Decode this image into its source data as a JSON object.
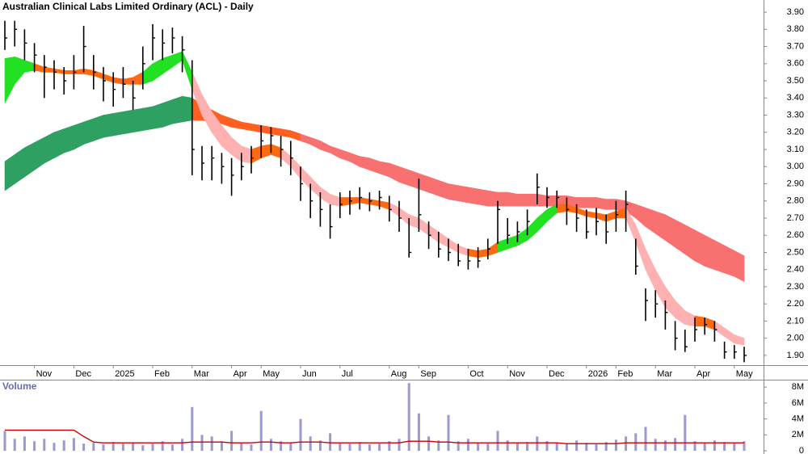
{
  "chart_data": [
    {
      "type": "ohlc",
      "title": "Australian Clinical Labs Limited Ordinary (ACL) - Daily",
      "categories": [
        null,
        null,
        null,
        "Nov",
        null,
        null,
        null,
        "Dec",
        null,
        null,
        null,
        "2025",
        null,
        null,
        null,
        "Feb",
        null,
        null,
        null,
        "Mar",
        null,
        null,
        null,
        "Apr",
        null,
        null,
        "May",
        null,
        null,
        null,
        "Jun",
        null,
        null,
        null,
        "Jul",
        null,
        null,
        null,
        null,
        "Aug",
        null,
        null,
        "Sep",
        null,
        null,
        null,
        null,
        "Oct",
        null,
        null,
        null,
        "Nov",
        null,
        null,
        null,
        "Dec",
        null,
        null,
        null,
        "2026",
        null,
        null,
        "Feb",
        null,
        null,
        null,
        "Mar",
        null,
        null,
        null,
        "Apr",
        null,
        null,
        null,
        "May",
        null
      ],
      "high": [
        3.85,
        3.85,
        3.8,
        3.72,
        3.65,
        3.62,
        3.58,
        3.65,
        3.82,
        3.65,
        3.58,
        3.55,
        3.58,
        3.5,
        3.7,
        3.83,
        3.8,
        3.81,
        3.76,
        3.62,
        3.12,
        3.12,
        3.08,
        3.05,
        3.08,
        3.12,
        3.24,
        3.23,
        3.18,
        3.15,
        3.0,
        2.9,
        2.85,
        2.78,
        2.85,
        2.86,
        2.88,
        2.85,
        2.86,
        2.83,
        2.8,
        2.7,
        2.93,
        2.68,
        2.62,
        2.58,
        2.55,
        2.52,
        2.53,
        2.58,
        2.8,
        2.7,
        2.68,
        2.75,
        2.96,
        2.88,
        2.86,
        2.82,
        2.78,
        2.75,
        2.76,
        2.72,
        2.8,
        2.86,
        2.58,
        2.29,
        2.28,
        2.22,
        2.1,
        2.05,
        2.12,
        2.12,
        2.1,
        1.98,
        1.96,
        1.95
      ],
      "low": [
        3.68,
        3.7,
        3.62,
        3.55,
        3.4,
        3.45,
        3.42,
        3.45,
        3.55,
        3.45,
        3.38,
        3.35,
        3.4,
        3.33,
        3.45,
        3.62,
        3.62,
        3.66,
        3.55,
        2.95,
        2.92,
        2.92,
        2.9,
        2.83,
        2.92,
        2.96,
        3.05,
        3.08,
        3.0,
        2.95,
        2.8,
        2.7,
        2.65,
        2.58,
        2.7,
        2.72,
        2.75,
        2.74,
        2.75,
        2.68,
        2.62,
        2.47,
        2.62,
        2.52,
        2.47,
        2.45,
        2.42,
        2.4,
        2.41,
        2.46,
        2.55,
        2.55,
        2.56,
        2.6,
        2.78,
        2.76,
        2.76,
        2.66,
        2.62,
        2.58,
        2.6,
        2.55,
        2.62,
        2.62,
        2.37,
        2.1,
        2.12,
        2.05,
        1.93,
        1.92,
        1.98,
        2.02,
        1.98,
        1.88,
        1.88,
        1.86
      ],
      "close": [
        3.75,
        3.8,
        3.72,
        3.65,
        3.58,
        3.55,
        3.5,
        3.55,
        3.7,
        3.55,
        3.5,
        3.45,
        3.48,
        3.4,
        3.6,
        3.75,
        3.72,
        3.75,
        3.68,
        3.1,
        3.02,
        3.05,
        3.0,
        2.95,
        3.0,
        3.05,
        3.15,
        3.18,
        3.1,
        3.05,
        2.9,
        2.8,
        2.75,
        2.65,
        2.78,
        2.8,
        2.82,
        2.8,
        2.82,
        2.75,
        2.7,
        2.5,
        2.72,
        2.6,
        2.52,
        2.5,
        2.45,
        2.45,
        2.45,
        2.52,
        2.75,
        2.6,
        2.62,
        2.68,
        2.88,
        2.82,
        2.82,
        2.75,
        2.7,
        2.62,
        2.68,
        2.62,
        2.72,
        2.78,
        2.42,
        2.22,
        2.2,
        2.15,
        2.0,
        1.95,
        2.05,
        2.08,
        2.05,
        1.92,
        1.92,
        1.9
      ],
      "color": "#000000",
      "bands": [
        {
          "upper": [
            3.03,
            3.07,
            3.11,
            3.14,
            3.17,
            3.2,
            3.22,
            3.24,
            3.26,
            3.28,
            3.3,
            3.31,
            3.32,
            3.33,
            3.34,
            3.35,
            3.37,
            3.39,
            3.41,
            3.4,
            3.36,
            3.33,
            3.3,
            3.28,
            3.26,
            3.25,
            3.24,
            3.23,
            3.22,
            3.21,
            3.19,
            3.17,
            3.15,
            3.12,
            3.1,
            3.08,
            3.06,
            3.05,
            3.03,
            3.02,
            3.0,
            2.98,
            2.96,
            2.94,
            2.92,
            2.9,
            2.89,
            2.88,
            2.87,
            2.86,
            2.85,
            2.85,
            2.84,
            2.84,
            2.84,
            2.83,
            2.83,
            2.83,
            2.82,
            2.82,
            2.82,
            2.81,
            2.81,
            2.8,
            2.78,
            2.76,
            2.74,
            2.72,
            2.69,
            2.66,
            2.63,
            2.6,
            2.57,
            2.54,
            2.51,
            2.48
          ],
          "lower": [
            2.86,
            2.9,
            2.94,
            2.98,
            3.02,
            3.05,
            3.08,
            3.1,
            3.13,
            3.15,
            3.17,
            3.18,
            3.19,
            3.2,
            3.21,
            3.22,
            3.23,
            3.25,
            3.26,
            3.27,
            3.27,
            3.26,
            3.25,
            3.23,
            3.22,
            3.21,
            3.2,
            3.19,
            3.18,
            3.17,
            3.15,
            3.13,
            3.1,
            3.08,
            3.05,
            3.03,
            3.0,
            2.98,
            2.96,
            2.94,
            2.91,
            2.89,
            2.87,
            2.85,
            2.83,
            2.81,
            2.8,
            2.79,
            2.78,
            2.77,
            2.77,
            2.77,
            2.77,
            2.77,
            2.77,
            2.77,
            2.77,
            2.77,
            2.76,
            2.76,
            2.76,
            2.75,
            2.75,
            2.74,
            2.7,
            2.65,
            2.61,
            2.57,
            2.53,
            2.49,
            2.45,
            2.42,
            2.4,
            2.38,
            2.36,
            2.33
          ],
          "colors": [
            "#2ea062",
            "#2ea062",
            "#2ea062",
            "#2ea062",
            "#2ea062",
            "#2ea062",
            "#2ea062",
            "#2ea062",
            "#2ea062",
            "#2ea062",
            "#2ea062",
            "#2ea062",
            "#2ea062",
            "#2ea062",
            "#2ea062",
            "#2ea062",
            "#2ea062",
            "#2ea062",
            "#2ea062",
            "#ff5f1f",
            "#ff5f1f",
            "#ff5f1f",
            "#ff5f1f",
            "#ff5f1f",
            "#ff5f1f",
            "#ff5f1f",
            "#ff5f1f",
            "#ff5f1f",
            "#ff5f1f",
            "#ff5f1f",
            "#f87070",
            "#f87070",
            "#f87070",
            "#f87070",
            "#f87070",
            "#f87070",
            "#f87070",
            "#f87070",
            "#f87070",
            "#f87070",
            "#f87070",
            "#f87070",
            "#f87070",
            "#f87070",
            "#f87070",
            "#f87070",
            "#f87070",
            "#f87070",
            "#f87070",
            "#f87070",
            "#f87070",
            "#f87070",
            "#f87070",
            "#f87070",
            "#f87070",
            "#f87070",
            "#f87070",
            "#f87070",
            "#f87070",
            "#f87070",
            "#f87070",
            "#f87070",
            "#f87070",
            "#f87070",
            "#f87070",
            "#f87070",
            "#f87070",
            "#f87070",
            "#f87070",
            "#f87070",
            "#f87070",
            "#f87070",
            "#f87070",
            "#f87070",
            "#f87070",
            "#f87070"
          ]
        },
        {
          "upper": [
            3.63,
            3.64,
            3.62,
            3.6,
            3.58,
            3.57,
            3.56,
            3.56,
            3.57,
            3.56,
            3.54,
            3.52,
            3.51,
            3.52,
            3.55,
            3.6,
            3.63,
            3.65,
            3.67,
            3.55,
            3.42,
            3.32,
            3.24,
            3.17,
            3.12,
            3.1,
            3.12,
            3.13,
            3.11,
            3.06,
            3.0,
            2.94,
            2.88,
            2.84,
            2.82,
            2.82,
            2.82,
            2.81,
            2.8,
            2.79,
            2.76,
            2.72,
            2.7,
            2.66,
            2.62,
            2.58,
            2.54,
            2.52,
            2.51,
            2.52,
            2.56,
            2.58,
            2.6,
            2.64,
            2.7,
            2.75,
            2.78,
            2.78,
            2.76,
            2.74,
            2.73,
            2.72,
            2.74,
            2.76,
            2.66,
            2.52,
            2.4,
            2.3,
            2.22,
            2.16,
            2.13,
            2.12,
            2.1,
            2.06,
            2.02,
            2.0
          ],
          "lower": [
            3.37,
            3.48,
            3.55,
            3.56,
            3.55,
            3.55,
            3.54,
            3.54,
            3.54,
            3.53,
            3.51,
            3.49,
            3.48,
            3.48,
            3.48,
            3.5,
            3.54,
            3.58,
            3.62,
            3.45,
            3.3,
            3.2,
            3.12,
            3.07,
            3.03,
            3.02,
            3.05,
            3.07,
            3.05,
            3.0,
            2.93,
            2.87,
            2.82,
            2.78,
            2.77,
            2.78,
            2.79,
            2.78,
            2.77,
            2.75,
            2.71,
            2.66,
            2.64,
            2.6,
            2.56,
            2.53,
            2.5,
            2.48,
            2.47,
            2.48,
            2.5,
            2.52,
            2.54,
            2.57,
            2.62,
            2.68,
            2.73,
            2.74,
            2.73,
            2.71,
            2.7,
            2.68,
            2.7,
            2.7,
            2.56,
            2.4,
            2.28,
            2.18,
            2.12,
            2.08,
            2.07,
            2.07,
            2.05,
            2.01,
            1.97,
            1.96
          ],
          "colors": [
            "#22e022",
            "#22e022",
            "#22e022",
            "#ff6a10",
            "#ff6a10",
            "#ff6a10",
            "#ff6a10",
            "#ff6a10",
            "#ff6a10",
            "#ff6a10",
            "#ff6a10",
            "#ff6a10",
            "#ff6a10",
            "#ff6a10",
            "#22e022",
            "#22e022",
            "#22e022",
            "#22e022",
            "#22e022",
            "#ffb0b0",
            "#ffb0b0",
            "#ffb0b0",
            "#ffb0b0",
            "#ffb0b0",
            "#ffb0b0",
            "#ff6a10",
            "#ff6a10",
            "#ff6a10",
            "#ffb0b0",
            "#ffb0b0",
            "#ffb0b0",
            "#ffb0b0",
            "#ffb0b0",
            "#ffb0b0",
            "#ff6a10",
            "#ff6a10",
            "#ff6a10",
            "#ff6a10",
            "#ff6a10",
            "#ffb0b0",
            "#ffb0b0",
            "#ffb0b0",
            "#ffb0b0",
            "#ffb0b0",
            "#ffb0b0",
            "#ffb0b0",
            "#ffb0b0",
            "#ff6a10",
            "#ff6a10",
            "#ff6a10",
            "#22e022",
            "#22e022",
            "#22e022",
            "#22e022",
            "#22e022",
            "#22e022",
            "#ff6a10",
            "#ff6a10",
            "#ff6a10",
            "#ff6a10",
            "#ff6a10",
            "#ff6a10",
            "#ff6a10",
            "#ffb0b0",
            "#ffb0b0",
            "#ffb0b0",
            "#ffb0b0",
            "#ffb0b0",
            "#ffb0b0",
            "#ffb0b0",
            "#ff6a10",
            "#ff6a10",
            "#ffb0b0",
            "#ffb0b0",
            "#ffb0b0",
            "#ffb0b0"
          ]
        }
      ],
      "ylim": [
        1.843,
        3.971
      ],
      "yticks": [
        {
          "value": 3.9,
          "label": "3.90"
        },
        {
          "value": 3.8,
          "label": "3.80"
        },
        {
          "value": 3.7,
          "label": "3.70"
        },
        {
          "value": 3.6,
          "label": "3.60"
        },
        {
          "value": 3.5,
          "label": "3.50"
        },
        {
          "value": 3.4,
          "label": "3.40"
        },
        {
          "value": 3.3,
          "label": "3.30"
        },
        {
          "value": 3.2,
          "label": "3.20"
        },
        {
          "value": 3.1,
          "label": "3.10"
        },
        {
          "value": 3.0,
          "label": "3.00"
        },
        {
          "value": 2.9,
          "label": "2.90"
        },
        {
          "value": 2.8,
          "label": "2.80"
        },
        {
          "value": 2.7,
          "label": "2.70"
        },
        {
          "value": 2.6,
          "label": "2.60"
        },
        {
          "value": 2.5,
          "label": "2.50"
        },
        {
          "value": 2.4,
          "label": "2.40"
        },
        {
          "value": 2.3,
          "label": "2.30"
        },
        {
          "value": 2.2,
          "label": "2.20"
        },
        {
          "value": 2.1,
          "label": "2.10"
        },
        {
          "value": 2.0,
          "label": "2.00"
        },
        {
          "value": 1.9,
          "label": "1.90"
        }
      ]
    },
    {
      "type": "bar",
      "title": "Volume",
      "values": [
        2.5,
        1.5,
        1.8,
        1.2,
        1.5,
        1.0,
        1.3,
        1.6,
        0.9,
        1.0,
        0.8,
        1.1,
        0.9,
        1.0,
        0.7,
        0.9,
        1.2,
        0.8,
        1.5,
        5.5,
        2.0,
        1.8,
        1.2,
        2.5,
        1.0,
        0.8,
        5.0,
        1.5,
        1.2,
        1.0,
        4.0,
        1.8,
        1.3,
        2.2,
        1.0,
        0.9,
        1.1,
        0.8,
        0.9,
        1.2,
        1.5,
        8.5,
        4.7,
        1.8,
        1.3,
        4.5,
        1.2,
        1.5,
        1.0,
        0.9,
        2.5,
        1.3,
        1.0,
        1.1,
        1.8,
        1.2,
        1.0,
        0.9,
        1.3,
        1.0,
        0.8,
        1.1,
        1.4,
        1.8,
        2.2,
        3.0,
        1.5,
        1.3,
        1.6,
        4.5,
        1.2,
        1.0,
        1.3,
        1.1,
        1.0,
        1.2
      ],
      "color": "#9a9ad0",
      "line": {
        "values": [
          2.6,
          2.6,
          2.6,
          2.6,
          2.6,
          2.6,
          2.6,
          2.6,
          1.8,
          1.1,
          1.0,
          1.0,
          1.0,
          1.0,
          1.0,
          1.0,
          1.0,
          1.0,
          1.0,
          1.1,
          1.1,
          1.1,
          1.1,
          1.0,
          1.0,
          1.0,
          1.1,
          1.1,
          1.0,
          1.0,
          1.1,
          1.1,
          1.1,
          1.0,
          1.0,
          1.0,
          1.0,
          1.0,
          1.0,
          1.0,
          1.0,
          1.2,
          1.2,
          1.2,
          1.1,
          1.1,
          1.0,
          1.0,
          1.0,
          1.0,
          1.0,
          1.0,
          1.0,
          1.0,
          1.0,
          1.0,
          1.0,
          0.9,
          0.9,
          0.9,
          0.9,
          0.9,
          0.9,
          1.0,
          1.0,
          1.0,
          1.0,
          1.0,
          1.0,
          1.0,
          1.0,
          1.0,
          1.0,
          1.0,
          1.0,
          1.0
        ],
        "color": "#cc0000"
      },
      "ylim": [
        -0.2,
        8.73
      ],
      "yticks": [
        {
          "value": 8,
          "label": "8M"
        },
        {
          "value": 6,
          "label": "6M"
        },
        {
          "value": 4,
          "label": "4M"
        },
        {
          "value": 2,
          "label": "2M"
        },
        0
      ]
    }
  ]
}
